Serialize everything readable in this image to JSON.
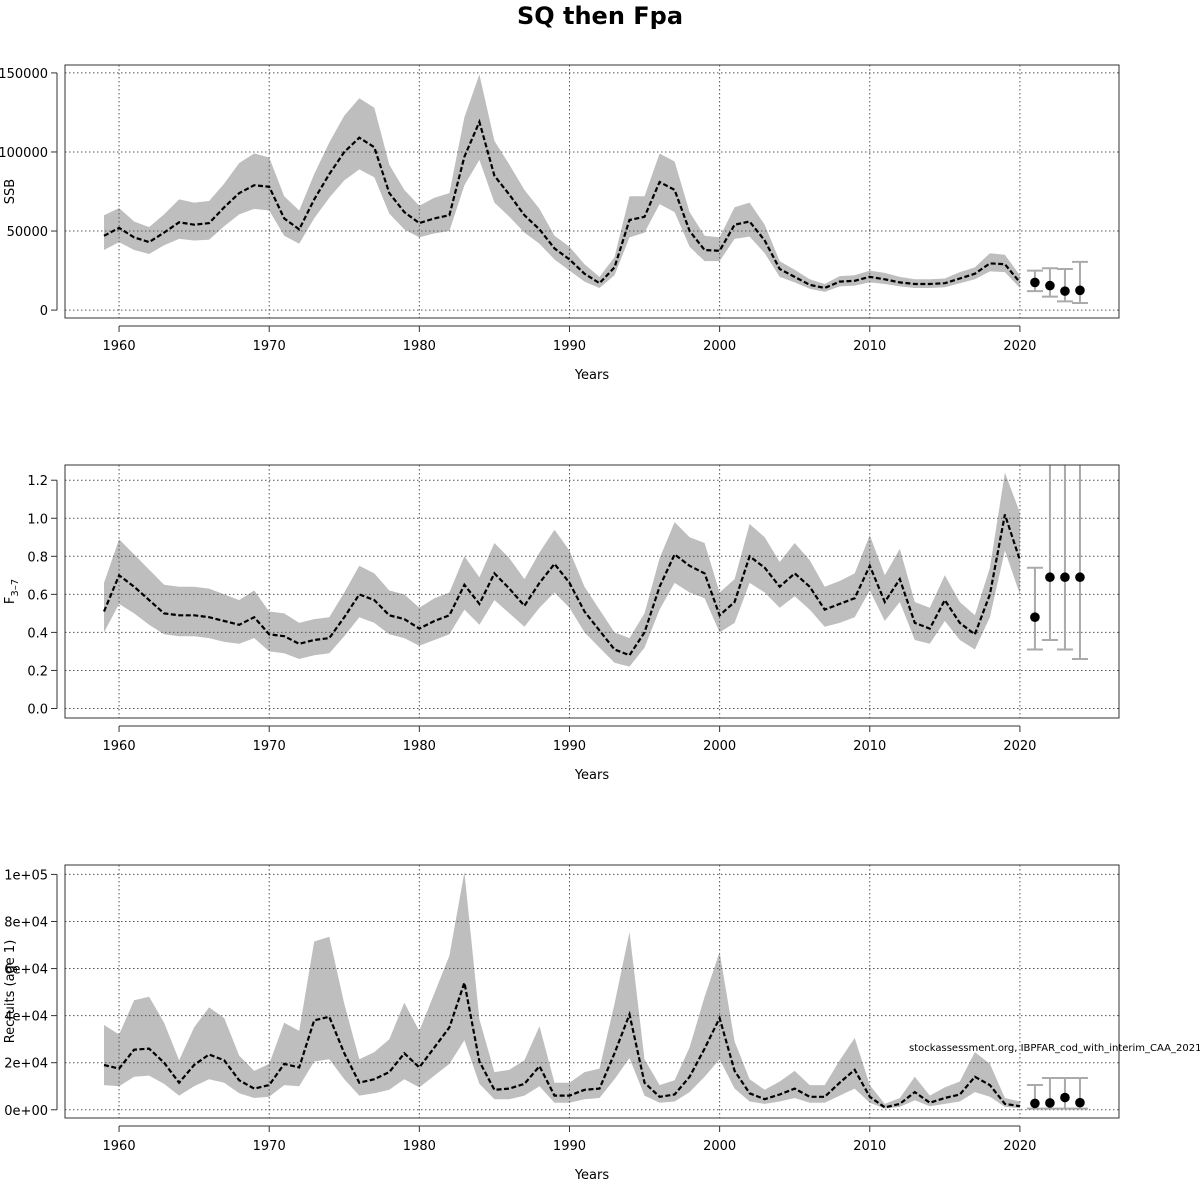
{
  "title": "SQ then Fpa",
  "watermark": "stockassessment.org, IBPFAR_cod_with_interim_CAA_2021",
  "chart_data": [
    {
      "type": "line",
      "name": "ssb",
      "ylabel": "SSB",
      "xlabel": "Years",
      "xlim": [
        1956.4,
        2026.6
      ],
      "ylim": [
        -5000,
        155000
      ],
      "xticks": [
        1960,
        1970,
        1980,
        1990,
        2000,
        2010,
        2020
      ],
      "yticks": [
        0,
        50000,
        100000,
        150000
      ],
      "ytick_labels": [
        "0",
        "50000",
        "100000",
        "150000"
      ],
      "grid": true,
      "band_color": "#bebebe",
      "x": [
        1959,
        1960,
        1961,
        1962,
        1963,
        1964,
        1965,
        1966,
        1967,
        1968,
        1969,
        1970,
        1971,
        1972,
        1973,
        1974,
        1975,
        1976,
        1977,
        1978,
        1979,
        1980,
        1981,
        1982,
        1983,
        1984,
        1985,
        1986,
        1987,
        1988,
        1989,
        1990,
        1991,
        1992,
        1993,
        1994,
        1995,
        1996,
        1997,
        1998,
        1999,
        2000,
        2001,
        2002,
        2003,
        2004,
        2005,
        2006,
        2007,
        2008,
        2009,
        2010,
        2011,
        2012,
        2013,
        2014,
        2015,
        2016,
        2017,
        2018,
        2019,
        2020
      ],
      "estimate": [
        47000,
        52000,
        46000,
        43000,
        49000,
        55500,
        54000,
        55000,
        65000,
        74000,
        79000,
        78000,
        58000,
        51000,
        70000,
        86000,
        100000,
        109000,
        103000,
        74000,
        62000,
        55000,
        58000,
        60000,
        97000,
        119000,
        85000,
        73000,
        60000,
        51000,
        39000,
        32000,
        23000,
        17000,
        27000,
        57000,
        59000,
        81000,
        76000,
        50000,
        38000,
        37500,
        54000,
        56000,
        44000,
        26000,
        21000,
        16000,
        14000,
        18000,
        18500,
        21000,
        19500,
        17500,
        16500,
        16500,
        17000,
        20000,
        23000,
        29500,
        29000,
        17500
      ],
      "low": [
        38000,
        43000,
        38000,
        35500,
        41000,
        45000,
        44000,
        44500,
        53000,
        60500,
        64000,
        63000,
        47000,
        42000,
        58000,
        71000,
        82000,
        89000,
        84000,
        61000,
        51000,
        46000,
        48500,
        50000,
        79000,
        95000,
        68000,
        59000,
        49000,
        42000,
        32000,
        25000,
        18000,
        14000,
        22000,
        46000,
        49000,
        67000,
        62000,
        40000,
        31000,
        31000,
        45000,
        46500,
        36000,
        21000,
        17500,
        13500,
        11500,
        15000,
        15500,
        17500,
        16500,
        15000,
        14000,
        14000,
        14500,
        17000,
        19500,
        24500,
        24000,
        14000
      ],
      "high": [
        60000,
        64500,
        56000,
        52500,
        60500,
        70000,
        68000,
        69000,
        80000,
        93000,
        99000,
        96500,
        72000,
        63000,
        86000,
        106000,
        123000,
        134000,
        128000,
        92000,
        76000,
        66000,
        71000,
        74000,
        122000,
        149000,
        107000,
        92000,
        76000,
        64000,
        47000,
        40000,
        29000,
        21000,
        33500,
        72000,
        72000,
        99000,
        94000,
        62000,
        47000,
        46000,
        65000,
        68000,
        54000,
        31000,
        25500,
        19500,
        16500,
        21500,
        22000,
        25000,
        23500,
        21000,
        19500,
        19500,
        20000,
        24000,
        27000,
        36000,
        35000,
        22000
      ],
      "forecast": {
        "x": [
          2021,
          2022,
          2023,
          2024
        ],
        "median": [
          17500,
          15500,
          12000,
          12500
        ],
        "low": [
          12000,
          8500,
          5500,
          4500
        ],
        "high": [
          25000,
          26500,
          26000,
          30500
        ]
      }
    },
    {
      "type": "line",
      "name": "fbar",
      "ylabel": "F3–7",
      "ylabel_main": "F",
      "ylabel_sub": "3–7",
      "xlabel": "Years",
      "xlim": [
        1956.4,
        2026.6
      ],
      "ylim": [
        -0.05,
        1.28
      ],
      "xticks": [
        1960,
        1970,
        1980,
        1990,
        2000,
        2010,
        2020
      ],
      "yticks": [
        0.0,
        0.2,
        0.4,
        0.6,
        0.8,
        1.0,
        1.2
      ],
      "ytick_labels": [
        "0.0",
        "0.2",
        "0.4",
        "0.6",
        "0.8",
        "1.0",
        "1.2"
      ],
      "grid": true,
      "band_color": "#bebebe",
      "x": [
        1959,
        1960,
        1961,
        1962,
        1963,
        1964,
        1965,
        1966,
        1967,
        1968,
        1969,
        1970,
        1971,
        1972,
        1973,
        1974,
        1975,
        1976,
        1977,
        1978,
        1979,
        1980,
        1981,
        1982,
        1983,
        1984,
        1985,
        1986,
        1987,
        1988,
        1989,
        1990,
        1991,
        1992,
        1993,
        1994,
        1995,
        1996,
        1997,
        1998,
        1999,
        2000,
        2001,
        2002,
        2003,
        2004,
        2005,
        2006,
        2007,
        2008,
        2009,
        2010,
        2011,
        2012,
        2013,
        2014,
        2015,
        2016,
        2017,
        2018,
        2019,
        2020
      ],
      "estimate": [
        0.51,
        0.7,
        0.64,
        0.57,
        0.5,
        0.49,
        0.49,
        0.48,
        0.46,
        0.44,
        0.48,
        0.39,
        0.38,
        0.34,
        0.36,
        0.37,
        0.48,
        0.6,
        0.57,
        0.49,
        0.47,
        0.42,
        0.46,
        0.49,
        0.65,
        0.55,
        0.71,
        0.63,
        0.54,
        0.66,
        0.76,
        0.66,
        0.51,
        0.41,
        0.31,
        0.28,
        0.4,
        0.64,
        0.81,
        0.75,
        0.71,
        0.49,
        0.56,
        0.8,
        0.74,
        0.64,
        0.71,
        0.64,
        0.52,
        0.55,
        0.58,
        0.75,
        0.56,
        0.68,
        0.45,
        0.42,
        0.57,
        0.45,
        0.39,
        0.6,
        1.02,
        0.78
      ],
      "low": [
        0.4,
        0.55,
        0.5,
        0.44,
        0.39,
        0.38,
        0.38,
        0.37,
        0.35,
        0.34,
        0.37,
        0.3,
        0.29,
        0.26,
        0.28,
        0.29,
        0.38,
        0.48,
        0.45,
        0.39,
        0.37,
        0.33,
        0.36,
        0.39,
        0.52,
        0.44,
        0.57,
        0.5,
        0.43,
        0.53,
        0.61,
        0.53,
        0.4,
        0.32,
        0.24,
        0.22,
        0.32,
        0.52,
        0.66,
        0.61,
        0.58,
        0.4,
        0.45,
        0.66,
        0.61,
        0.53,
        0.59,
        0.52,
        0.43,
        0.45,
        0.48,
        0.62,
        0.46,
        0.56,
        0.36,
        0.34,
        0.46,
        0.36,
        0.31,
        0.48,
        0.83,
        0.6
      ],
      "high": [
        0.66,
        0.89,
        0.81,
        0.73,
        0.65,
        0.64,
        0.64,
        0.63,
        0.6,
        0.57,
        0.62,
        0.51,
        0.5,
        0.45,
        0.47,
        0.48,
        0.61,
        0.75,
        0.71,
        0.62,
        0.6,
        0.53,
        0.58,
        0.61,
        0.8,
        0.69,
        0.87,
        0.79,
        0.68,
        0.82,
        0.94,
        0.83,
        0.64,
        0.52,
        0.4,
        0.37,
        0.5,
        0.79,
        0.98,
        0.9,
        0.87,
        0.61,
        0.68,
        0.97,
        0.9,
        0.77,
        0.87,
        0.78,
        0.64,
        0.67,
        0.71,
        0.91,
        0.7,
        0.84,
        0.56,
        0.53,
        0.7,
        0.56,
        0.49,
        0.74,
        1.24,
        1.03
      ],
      "forecast": {
        "x": [
          2021,
          2022,
          2023,
          2024
        ],
        "median": [
          0.48,
          0.69,
          0.69,
          0.69
        ],
        "low": [
          0.31,
          0.36,
          0.31,
          0.26
        ],
        "high": [
          0.74,
          1.45,
          1.45,
          1.45
        ]
      }
    },
    {
      "type": "line",
      "name": "recruits",
      "ylabel": "Recruits (age 1)",
      "xlabel": "Years",
      "xlim": [
        1956.4,
        2026.6
      ],
      "ylim": [
        -3500,
        104000
      ],
      "xticks": [
        1960,
        1970,
        1980,
        1990,
        2000,
        2010,
        2020
      ],
      "yticks": [
        0,
        20000,
        40000,
        60000,
        80000,
        100000
      ],
      "ytick_labels": [
        "0e+00",
        "2e+04",
        "4e+04",
        "6e+04",
        "8e+04",
        "1e+05"
      ],
      "grid": true,
      "band_color": "#bebebe",
      "x": [
        1959,
        1960,
        1961,
        1962,
        1963,
        1964,
        1965,
        1966,
        1967,
        1968,
        1969,
        1970,
        1971,
        1972,
        1973,
        1974,
        1975,
        1976,
        1977,
        1978,
        1979,
        1980,
        1981,
        1982,
        1983,
        1984,
        1985,
        1986,
        1987,
        1988,
        1989,
        1990,
        1991,
        1992,
        1993,
        1994,
        1995,
        1996,
        1997,
        1998,
        1999,
        2000,
        2001,
        2002,
        2003,
        2004,
        2005,
        2006,
        2007,
        2008,
        2009,
        2010,
        2011,
        2012,
        2013,
        2014,
        2015,
        2016,
        2017,
        2018,
        2019,
        2020
      ],
      "estimate": [
        19000,
        17500,
        25500,
        26000,
        20000,
        11500,
        19000,
        23500,
        21000,
        12500,
        9000,
        10500,
        19500,
        18000,
        38000,
        39500,
        24000,
        11500,
        13000,
        16000,
        24000,
        18000,
        26500,
        35000,
        54000,
        20500,
        8500,
        9000,
        11000,
        18500,
        6000,
        6000,
        8500,
        9000,
        24000,
        40500,
        11500,
        5500,
        6500,
        14000,
        26000,
        39000,
        16500,
        7000,
        4500,
        6500,
        9000,
        5500,
        5500,
        11500,
        17000,
        5500,
        1000,
        2500,
        7500,
        3000,
        5000,
        6500,
        14000,
        10500,
        2500,
        1500
      ],
      "low": [
        10500,
        10000,
        14000,
        14500,
        11000,
        6000,
        10000,
        13000,
        11500,
        7000,
        5000,
        5500,
        10500,
        10000,
        20500,
        21500,
        13000,
        6000,
        7000,
        8500,
        13000,
        9500,
        14500,
        19500,
        29500,
        11000,
        4500,
        4500,
        6000,
        10000,
        3000,
        3000,
        4500,
        5000,
        13000,
        22000,
        6000,
        3000,
        3500,
        7500,
        14000,
        21500,
        9000,
        3500,
        2500,
        3500,
        5000,
        3000,
        3000,
        6000,
        9000,
        3000,
        500,
        1200,
        4000,
        1500,
        2500,
        3500,
        7500,
        5500,
        1200,
        700
      ],
      "high": [
        36000,
        32000,
        46500,
        48000,
        37000,
        21000,
        35000,
        43500,
        39000,
        23000,
        16500,
        19500,
        37000,
        33500,
        71500,
        73500,
        45000,
        21500,
        24500,
        30000,
        45500,
        33500,
        49500,
        65500,
        101000,
        38500,
        16000,
        17000,
        21000,
        35500,
        11500,
        11500,
        16000,
        17500,
        45000,
        75500,
        21500,
        10500,
        12500,
        26500,
        48000,
        67000,
        29000,
        13000,
        8500,
        12000,
        16500,
        10500,
        10500,
        21000,
        30500,
        10500,
        2500,
        5000,
        14000,
        6000,
        9500,
        12000,
        24500,
        19500,
        5000,
        3500
      ],
      "forecast": {
        "x": [
          2021,
          2022,
          2023,
          2024
        ],
        "median": [
          2700,
          2900,
          5200,
          3000
        ],
        "low": [
          500,
          500,
          500,
          500
        ],
        "high": [
          10500,
          13500,
          13500,
          13500
        ]
      }
    }
  ]
}
